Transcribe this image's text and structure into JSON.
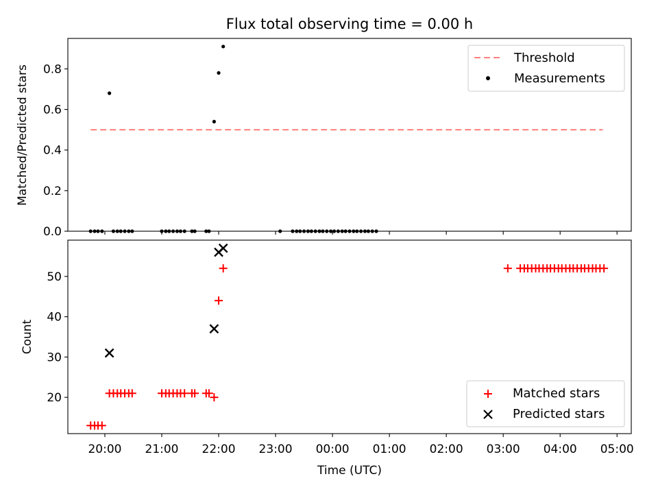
{
  "chart_data": [
    {
      "type": "scatter",
      "title": "Flux total observing time = 0.00 h",
      "xlabel": "",
      "ylabel": "Matched/Predicted stars",
      "ylim": [
        0,
        0.95
      ],
      "yticks": [
        0.0,
        0.2,
        0.4,
        0.6,
        0.8
      ],
      "ytick_labels": [
        "0.0",
        "0.2",
        "0.4",
        "0.6",
        "0.8"
      ],
      "legend_position": "upper right",
      "threshold": {
        "name": "Threshold",
        "value": 0.5,
        "x_start": 19.75,
        "x_end": 28.75,
        "color": "#ff7f7f",
        "style": "dashed"
      },
      "series": [
        {
          "name": "Measurements",
          "marker": "dot",
          "color": "#000000",
          "x": [
            19.75,
            19.82,
            19.88,
            19.95,
            20.08,
            20.15,
            20.22,
            20.28,
            20.35,
            20.42,
            20.48,
            21.0,
            21.07,
            21.13,
            21.2,
            21.27,
            21.33,
            21.4,
            21.53,
            21.58,
            21.78,
            21.83,
            21.92,
            22.0,
            22.08,
            23.08,
            23.3,
            23.37,
            23.43,
            23.5,
            23.57,
            23.63,
            23.7,
            23.77,
            23.83,
            23.9,
            23.97,
            24.03,
            24.1,
            24.17,
            24.23,
            24.3,
            24.37,
            24.43,
            24.5,
            24.57,
            24.63,
            24.7,
            24.77
          ],
          "y": [
            0,
            0,
            0,
            0,
            0.68,
            0,
            0,
            0,
            0,
            0,
            0,
            0,
            0,
            0,
            0,
            0,
            0,
            0,
            0,
            0,
            0,
            0,
            0.54,
            0.78,
            0.91,
            0,
            0,
            0,
            0,
            0,
            0,
            0,
            0,
            0,
            0,
            0,
            0,
            0,
            0,
            0,
            0,
            0,
            0,
            0,
            0,
            0,
            0,
            0,
            0
          ]
        }
      ]
    },
    {
      "type": "scatter",
      "title": "",
      "xlabel": "Time (UTC)",
      "ylabel": "Count",
      "ylim": [
        11,
        59
      ],
      "yticks": [
        20,
        30,
        40,
        50
      ],
      "ytick_labels": [
        "20",
        "30",
        "40",
        "50"
      ],
      "xlim": [
        19.35,
        29.25
      ],
      "xticks": [
        20,
        21,
        22,
        23,
        24,
        25,
        26,
        27,
        28,
        29
      ],
      "xtick_labels": [
        "20:00",
        "21:00",
        "22:00",
        "23:00",
        "00:00",
        "01:00",
        "02:00",
        "03:00",
        "04:00",
        "05:00"
      ],
      "legend_position": "lower right",
      "series": [
        {
          "name": "Matched stars",
          "marker": "plus",
          "color": "#ff0000",
          "x": [
            19.75,
            19.82,
            19.88,
            19.95,
            20.08,
            20.15,
            20.22,
            20.28,
            20.35,
            20.42,
            20.48,
            21.0,
            21.07,
            21.13,
            21.2,
            21.27,
            21.33,
            21.4,
            21.53,
            21.58,
            21.78,
            21.83,
            21.92,
            22.0,
            22.08,
            27.08,
            27.3,
            27.37,
            27.43,
            27.5,
            27.57,
            27.63,
            27.7,
            27.77,
            27.83,
            27.9,
            27.97,
            28.03,
            28.1,
            28.17,
            28.23,
            28.3,
            28.37,
            28.43,
            28.5,
            28.57,
            28.63,
            28.7,
            28.77
          ],
          "y": [
            13,
            13,
            13,
            13,
            21,
            21,
            21,
            21,
            21,
            21,
            21,
            21,
            21,
            21,
            21,
            21,
            21,
            21,
            21,
            21,
            21,
            21,
            20,
            44,
            52,
            52,
            52,
            52,
            52,
            52,
            52,
            52,
            52,
            52,
            52,
            52,
            52,
            52,
            52,
            52,
            52,
            52,
            52,
            52,
            52,
            52,
            52,
            52,
            52
          ]
        },
        {
          "name": "Predicted stars",
          "marker": "x",
          "color": "#000000",
          "x": [
            20.08,
            21.92,
            22.0,
            22.08
          ],
          "y": [
            31,
            37,
            56,
            57
          ]
        }
      ]
    }
  ]
}
